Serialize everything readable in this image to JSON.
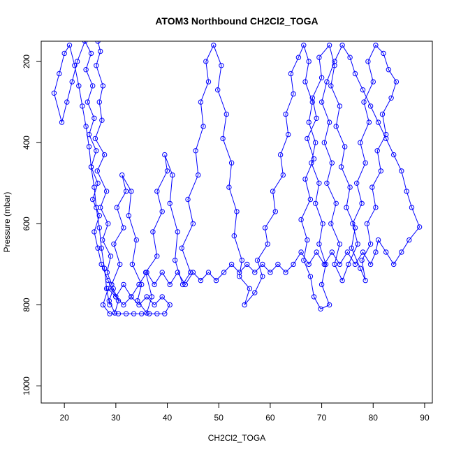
{
  "chart_data": {
    "type": "scatter",
    "title": "ATOM3 Northbound CH2Cl2_TOGA",
    "xlabel": "CH2Cl2_TOGA",
    "ylabel": "Pressure (mbar)",
    "xlim": [
      15.5,
      91.5
    ],
    "ylim": [
      1042,
      150
    ],
    "y_inverted": true,
    "x_ticks": [
      20,
      30,
      40,
      50,
      60,
      70,
      80,
      90
    ],
    "y_ticks": [
      200,
      400,
      600,
      800,
      1000
    ],
    "grid": false,
    "legend": "none",
    "series": [
      {
        "color": "#0000ff",
        "marker": "open-circle",
        "connected": true,
        "points": [
          [
            26.5,
            150
          ],
          [
            27.0,
            175
          ],
          [
            26.2,
            210
          ],
          [
            27.5,
            260
          ],
          [
            26.8,
            300
          ],
          [
            27.3,
            345
          ],
          [
            26.0,
            390
          ],
          [
            27.8,
            430
          ],
          [
            26.4,
            470
          ],
          [
            28.2,
            520
          ],
          [
            27.0,
            560
          ],
          [
            28.5,
            600
          ],
          [
            27.4,
            640
          ],
          [
            29.0,
            680
          ],
          [
            28.3,
            720
          ],
          [
            29.5,
            760
          ],
          [
            28.7,
            790
          ],
          [
            29.8,
            820
          ],
          [
            30.5,
            790
          ],
          [
            29.2,
            750
          ],
          [
            30.8,
            700
          ],
          [
            29.6,
            650
          ],
          [
            31.5,
            610
          ],
          [
            30.2,
            560
          ],
          [
            32.0,
            520
          ],
          [
            31.2,
            480
          ],
          [
            33.0,
            520
          ],
          [
            32.5,
            580
          ],
          [
            34.0,
            640
          ],
          [
            33.2,
            700
          ],
          [
            35.0,
            750
          ],
          [
            34.2,
            790
          ],
          [
            36.0,
            820
          ],
          [
            37.0,
            780
          ],
          [
            35.8,
            720
          ],
          [
            38.0,
            680
          ],
          [
            37.2,
            620
          ],
          [
            39.0,
            570
          ],
          [
            38.0,
            520
          ],
          [
            40.0,
            470
          ],
          [
            39.5,
            430
          ],
          [
            41.0,
            480
          ],
          [
            40.5,
            550
          ],
          [
            42.0,
            620
          ],
          [
            41.5,
            690
          ],
          [
            43.0,
            750
          ],
          [
            44.5,
            720
          ],
          [
            42.8,
            660
          ],
          [
            45.0,
            600
          ],
          [
            44.0,
            540
          ],
          [
            46.0,
            480
          ],
          [
            45.5,
            420
          ],
          [
            47.0,
            360
          ],
          [
            46.5,
            300
          ],
          [
            48.0,
            250
          ],
          [
            47.5,
            200
          ],
          [
            49.0,
            160
          ],
          [
            50.5,
            210
          ],
          [
            49.8,
            270
          ],
          [
            51.5,
            330
          ],
          [
            50.8,
            390
          ],
          [
            52.5,
            450
          ],
          [
            52.0,
            510
          ],
          [
            53.5,
            570
          ],
          [
            53.0,
            630
          ],
          [
            54.5,
            690
          ],
          [
            54.0,
            730
          ],
          [
            56.0,
            760
          ],
          [
            55.0,
            800
          ],
          [
            57.0,
            770
          ],
          [
            58.5,
            730
          ],
          [
            57.5,
            690
          ],
          [
            59.5,
            650
          ],
          [
            59.0,
            610
          ],
          [
            61.0,
            570
          ],
          [
            60.5,
            520
          ],
          [
            62.5,
            480
          ],
          [
            62.0,
            430
          ],
          [
            63.5,
            380
          ],
          [
            63.0,
            330
          ],
          [
            64.5,
            280
          ],
          [
            64.0,
            230
          ],
          [
            65.5,
            190
          ],
          [
            66.5,
            160
          ],
          [
            67.5,
            200
          ],
          [
            66.8,
            250
          ],
          [
            68.2,
            300
          ],
          [
            67.5,
            350
          ],
          [
            68.8,
            400
          ],
          [
            68.0,
            450
          ],
          [
            69.5,
            500
          ],
          [
            68.8,
            550
          ],
          [
            70.2,
            600
          ],
          [
            69.5,
            650
          ],
          [
            70.8,
            700
          ],
          [
            70.0,
            750
          ],
          [
            71.5,
            800
          ],
          [
            69.8,
            810
          ],
          [
            68.5,
            780
          ],
          [
            67.8,
            730
          ],
          [
            66.5,
            690
          ],
          [
            67.2,
            640
          ],
          [
            66.0,
            590
          ],
          [
            67.8,
            540
          ],
          [
            66.8,
            490
          ],
          [
            68.5,
            440
          ],
          [
            67.2,
            390
          ],
          [
            69.0,
            340
          ],
          [
            68.2,
            290
          ],
          [
            70.0,
            240
          ],
          [
            69.5,
            190
          ],
          [
            71.5,
            160
          ],
          [
            72.5,
            210
          ],
          [
            71.8,
            260
          ],
          [
            73.5,
            310
          ],
          [
            72.8,
            360
          ],
          [
            74.5,
            410
          ],
          [
            73.8,
            460
          ],
          [
            75.5,
            510
          ],
          [
            74.8,
            560
          ],
          [
            76.5,
            610
          ],
          [
            75.8,
            660
          ],
          [
            77.5,
            710
          ],
          [
            78.5,
            740
          ],
          [
            77.8,
            690
          ],
          [
            79.5,
            650
          ],
          [
            78.8,
            600
          ],
          [
            80.5,
            560
          ],
          [
            79.8,
            510
          ],
          [
            81.5,
            470
          ],
          [
            80.8,
            420
          ],
          [
            82.5,
            380
          ],
          [
            81.8,
            330
          ],
          [
            83.5,
            290
          ],
          [
            84.5,
            250
          ],
          [
            83.0,
            220
          ],
          [
            82.0,
            180
          ],
          [
            80.5,
            160
          ],
          [
            79.0,
            200
          ],
          [
            80.0,
            250
          ],
          [
            78.2,
            300
          ],
          [
            79.2,
            350
          ],
          [
            77.5,
            400
          ],
          [
            78.5,
            450
          ],
          [
            76.8,
            500
          ],
          [
            77.8,
            550
          ],
          [
            76.0,
            600
          ],
          [
            77.0,
            650
          ],
          [
            75.2,
            700
          ],
          [
            74.0,
            740
          ],
          [
            72.5,
            700
          ],
          [
            73.5,
            650
          ],
          [
            71.8,
            600
          ],
          [
            72.8,
            550
          ],
          [
            71.0,
            500
          ],
          [
            72.0,
            450
          ],
          [
            70.5,
            400
          ],
          [
            71.5,
            350
          ],
          [
            70.0,
            300
          ],
          [
            71.0,
            250
          ],
          [
            72.5,
            200
          ],
          [
            74.0,
            160
          ],
          [
            75.5,
            190
          ],
          [
            76.5,
            230
          ],
          [
            78.0,
            270
          ],
          [
            79.5,
            310
          ],
          [
            81.0,
            350
          ],
          [
            82.5,
            390
          ],
          [
            84.0,
            430
          ],
          [
            85.5,
            470
          ],
          [
            86.5,
            520
          ],
          [
            87.5,
            560
          ],
          [
            89.0,
            608
          ],
          [
            87.0,
            640
          ],
          [
            85.5,
            670
          ],
          [
            84.0,
            700
          ],
          [
            82.5,
            670
          ],
          [
            81.0,
            640
          ],
          [
            80.5,
            670
          ],
          [
            79.5,
            700
          ],
          [
            78.0,
            670
          ],
          [
            76.5,
            700
          ],
          [
            75.0,
            670
          ],
          [
            73.5,
            700
          ],
          [
            72.0,
            670
          ],
          [
            70.5,
            700
          ],
          [
            69.0,
            670
          ],
          [
            67.5,
            700
          ],
          [
            66.0,
            670
          ],
          [
            64.5,
            700
          ],
          [
            63.0,
            720
          ],
          [
            61.5,
            700
          ],
          [
            60.0,
            720
          ],
          [
            58.5,
            700
          ],
          [
            57.0,
            720
          ],
          [
            55.5,
            700
          ],
          [
            54.0,
            720
          ],
          [
            52.5,
            700
          ],
          [
            51.0,
            720
          ],
          [
            49.5,
            740
          ],
          [
            48.0,
            720
          ],
          [
            46.5,
            740
          ],
          [
            45.0,
            720
          ],
          [
            43.5,
            750
          ],
          [
            42.0,
            720
          ],
          [
            40.5,
            750
          ],
          [
            39.0,
            720
          ],
          [
            37.5,
            750
          ],
          [
            36.0,
            720
          ],
          [
            34.5,
            750
          ],
          [
            33.0,
            780
          ],
          [
            31.5,
            750
          ],
          [
            30.0,
            780
          ],
          [
            28.5,
            760
          ],
          [
            27.5,
            800
          ],
          [
            28.8,
            822
          ],
          [
            30.5,
            822
          ],
          [
            32.0,
            822
          ],
          [
            33.5,
            822
          ],
          [
            35.0,
            822
          ],
          [
            36.5,
            822
          ],
          [
            38.0,
            822
          ],
          [
            39.5,
            822
          ],
          [
            40.5,
            800
          ],
          [
            39.0,
            780
          ],
          [
            37.5,
            800
          ],
          [
            36.0,
            780
          ],
          [
            34.5,
            800
          ],
          [
            33.0,
            780
          ],
          [
            31.5,
            800
          ],
          [
            30.0,
            780
          ],
          [
            28.5,
            740
          ],
          [
            27.2,
            700
          ],
          [
            26.5,
            660
          ],
          [
            25.8,
            620
          ],
          [
            26.8,
            580
          ],
          [
            25.5,
            540
          ],
          [
            26.5,
            500
          ],
          [
            25.2,
            460
          ],
          [
            26.2,
            420
          ],
          [
            24.8,
            380
          ],
          [
            25.8,
            340
          ],
          [
            24.5,
            300
          ],
          [
            25.5,
            260
          ],
          [
            24.2,
            220
          ],
          [
            25.2,
            180
          ],
          [
            24.0,
            150
          ],
          [
            22.5,
            200
          ],
          [
            21.5,
            250
          ],
          [
            20.5,
            300
          ],
          [
            19.5,
            350
          ],
          [
            18.0,
            278
          ],
          [
            19.0,
            230
          ],
          [
            20.0,
            180
          ],
          [
            21.0,
            160
          ],
          [
            22.0,
            210
          ],
          [
            22.8,
            260
          ],
          [
            23.5,
            310
          ],
          [
            24.2,
            360
          ],
          [
            24.8,
            410
          ],
          [
            25.2,
            460
          ],
          [
            25.8,
            510
          ],
          [
            26.2,
            560
          ],
          [
            26.8,
            610
          ],
          [
            27.2,
            660
          ],
          [
            27.8,
            710
          ],
          [
            28.2,
            760
          ],
          [
            28.8,
            800
          ]
        ]
      }
    ]
  }
}
